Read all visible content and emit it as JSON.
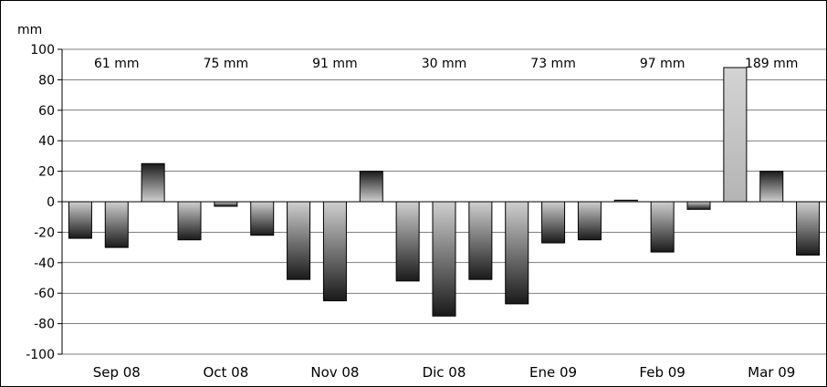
{
  "chart_data": {
    "type": "bar",
    "unit_label": "mm",
    "ylim": [
      -100,
      100
    ],
    "y_ticks": [
      100,
      80,
      60,
      40,
      20,
      0,
      -20,
      -40,
      -60,
      -80,
      -100
    ],
    "grid": true,
    "months": [
      {
        "label": "Sep 08",
        "total": "61 mm",
        "values": [
          -24,
          -30,
          25
        ]
      },
      {
        "label": "Oct 08",
        "total": "75 mm",
        "values": [
          -25,
          -3,
          -22
        ]
      },
      {
        "label": "Nov 08",
        "total": "91 mm",
        "values": [
          -51,
          -65,
          20
        ]
      },
      {
        "label": "Dic 08",
        "total": "30 mm",
        "values": [
          -52,
          -75,
          -51
        ]
      },
      {
        "label": "Ene 09",
        "total": "73 mm",
        "values": [
          -67,
          -27,
          -25
        ]
      },
      {
        "label": "Feb 09",
        "total": "97 mm",
        "values": [
          1,
          -33,
          -5
        ]
      },
      {
        "label": "Mar 09",
        "total": "189 mm",
        "values": [
          88,
          20,
          -35
        ]
      }
    ]
  }
}
